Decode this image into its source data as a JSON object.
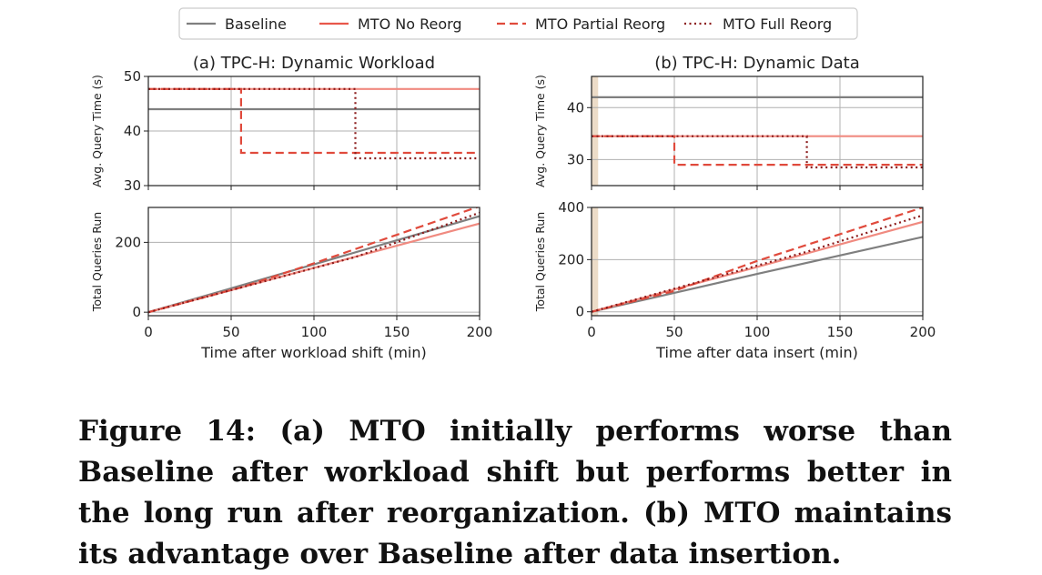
{
  "legend": {
    "items": [
      {
        "label": "Baseline",
        "color": "#7f7f7f",
        "dash": "solid"
      },
      {
        "label": "MTO No Reorg",
        "color": "#e8574a",
        "dash": "solid"
      },
      {
        "label": "MTO Partial Reorg",
        "color": "#e04a3c",
        "dash": "dashed"
      },
      {
        "label": "MTO Full Reorg",
        "color": "#8b1a1a",
        "dash": "dotted"
      }
    ]
  },
  "chart_data": [
    {
      "id": "a-top",
      "type": "line",
      "title": "(a) TPC-H: Dynamic Workload",
      "xlabel": "",
      "ylabel": "Avg. Query Time (s)",
      "xlim": [
        0,
        200
      ],
      "ylim": [
        30,
        50
      ],
      "xticks": [
        0,
        50,
        100,
        150,
        200
      ],
      "yticks": [
        30,
        40,
        50
      ],
      "show_xticklabels": false,
      "grid": true,
      "series": [
        {
          "name": "Baseline",
          "x": [
            0,
            200
          ],
          "y": [
            44,
            44
          ]
        },
        {
          "name": "MTO No Reorg",
          "x": [
            0,
            200
          ],
          "y": [
            47.7,
            47.7
          ]
        },
        {
          "name": "MTO Partial Reorg",
          "x": [
            0,
            56,
            56,
            200
          ],
          "y": [
            47.7,
            47.7,
            36,
            36
          ]
        },
        {
          "name": "MTO Full Reorg",
          "x": [
            0,
            125,
            125,
            200
          ],
          "y": [
            47.7,
            47.7,
            35,
            35
          ]
        }
      ]
    },
    {
      "id": "a-bottom",
      "type": "line",
      "title": "",
      "xlabel": "Time after workload shift (min)",
      "ylabel": "Total Queries Run",
      "xlim": [
        0,
        200
      ],
      "ylim": [
        -10,
        300
      ],
      "xticks": [
        0,
        50,
        100,
        150,
        200
      ],
      "yticks": [
        0,
        200
      ],
      "show_xticklabels": true,
      "grid": true,
      "series": [
        {
          "name": "Baseline",
          "x": [
            0,
            100,
            200
          ],
          "y": [
            0,
            137,
            275
          ]
        },
        {
          "name": "MTO No Reorg",
          "x": [
            0,
            100,
            200
          ],
          "y": [
            0,
            127,
            254
          ]
        },
        {
          "name": "MTO Partial Reorg",
          "x": [
            0,
            56,
            100,
            200
          ],
          "y": [
            0,
            71,
            140,
            303
          ]
        },
        {
          "name": "MTO Full Reorg",
          "x": [
            0,
            125,
            200
          ],
          "y": [
            0,
            158,
            285
          ]
        }
      ]
    },
    {
      "id": "b-top",
      "type": "line",
      "title": "(b) TPC-H: Dynamic Data",
      "xlabel": "",
      "ylabel": "Avg. Query Time (s)",
      "xlim": [
        0,
        200
      ],
      "ylim": [
        25,
        46
      ],
      "xticks": [
        0,
        50,
        100,
        150,
        200
      ],
      "yticks": [
        30,
        40
      ],
      "show_xticklabels": false,
      "grid": true,
      "shade_x": [
        0,
        4
      ],
      "series": [
        {
          "name": "Baseline",
          "x": [
            0,
            200
          ],
          "y": [
            42,
            42
          ]
        },
        {
          "name": "MTO No Reorg",
          "x": [
            0,
            200
          ],
          "y": [
            34.5,
            34.5
          ]
        },
        {
          "name": "MTO Partial Reorg",
          "x": [
            0,
            50,
            50,
            200
          ],
          "y": [
            34.5,
            34.5,
            29,
            29
          ]
        },
        {
          "name": "MTO Full Reorg",
          "x": [
            0,
            130,
            130,
            200
          ],
          "y": [
            34.5,
            34.5,
            28.5,
            28.5
          ]
        }
      ]
    },
    {
      "id": "b-bottom",
      "type": "line",
      "title": "",
      "xlabel": "Time after data insert (min)",
      "ylabel": "Total Queries Run",
      "xlim": [
        0,
        200
      ],
      "ylim": [
        -15,
        400
      ],
      "xticks": [
        0,
        50,
        100,
        150,
        200
      ],
      "yticks": [
        0,
        200,
        400
      ],
      "show_xticklabels": true,
      "grid": true,
      "shade_x": [
        0,
        4
      ],
      "series": [
        {
          "name": "Baseline",
          "x": [
            0,
            100,
            200
          ],
          "y": [
            0,
            145,
            287
          ]
        },
        {
          "name": "MTO No Reorg",
          "x": [
            0,
            100,
            200
          ],
          "y": [
            0,
            172,
            345
          ]
        },
        {
          "name": "MTO Partial Reorg",
          "x": [
            0,
            50,
            100,
            200
          ],
          "y": [
            0,
            80,
            195,
            400
          ]
        },
        {
          "name": "MTO Full Reorg",
          "x": [
            0,
            130,
            200
          ],
          "y": [
            0,
            230,
            370
          ]
        }
      ]
    }
  ],
  "caption": "Figure 14: (a) MTO initially performs worse than Baseline after workload shift but performs better in the long run after reorganization. (b) MTO maintains its advantage over Baseline after data insertion."
}
